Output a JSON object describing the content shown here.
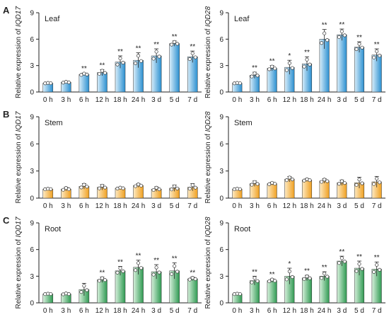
{
  "colors": {
    "blue_light": "#d9eefa",
    "blue_dark": "#2a8fd0",
    "orange_light": "#fdeac4",
    "orange_dark": "#f0a020",
    "green_light": "#d7f0dc",
    "green_dark": "#2f9a52"
  },
  "chart_data": [
    {
      "type": "bar",
      "panel_letter": "A",
      "tissue": "Leaf",
      "ylabel_prefix": "Relative expression of ",
      "gene": "IQD17",
      "categories": [
        "0 h",
        "3 h",
        "6 h",
        "12 h",
        "18 h",
        "24 h",
        "3 d",
        "5 d",
        "7 d"
      ],
      "values": [
        1.0,
        1.1,
        2.0,
        2.2,
        3.4,
        3.6,
        4.1,
        5.5,
        4.0
      ],
      "errors": [
        0.05,
        0.1,
        0.15,
        0.35,
        0.7,
        0.85,
        0.8,
        0.3,
        0.65
      ],
      "significance": [
        "",
        "",
        "**",
        "**",
        "**",
        "**",
        "**",
        "**",
        "**"
      ],
      "ylim": [
        0,
        9
      ],
      "yticks": [
        0,
        3,
        6,
        9
      ],
      "color": "blue"
    },
    {
      "type": "bar",
      "panel_letter": "",
      "tissue": "Leaf",
      "ylabel_prefix": "Relative expression of ",
      "gene": "IQD28",
      "categories": [
        "0 h",
        "3 h",
        "6 h",
        "12 h",
        "18 h",
        "24 h",
        "3 d",
        "5 d",
        "7 d"
      ],
      "values": [
        1.0,
        1.9,
        2.7,
        2.8,
        3.2,
        6.0,
        6.5,
        5.1,
        4.2
      ],
      "errors": [
        0.05,
        0.35,
        0.3,
        0.8,
        0.8,
        1.1,
        0.65,
        0.6,
        0.7
      ],
      "significance": [
        "",
        "**",
        "**",
        "*",
        "**",
        "**",
        "**",
        "**",
        "**"
      ],
      "ylim": [
        0,
        9
      ],
      "yticks": [
        0,
        3,
        6,
        9
      ],
      "color": "blue"
    },
    {
      "type": "bar",
      "panel_letter": "B",
      "tissue": "Stem",
      "ylabel_prefix": "Relative expression of ",
      "gene": "IQD17",
      "categories": [
        "0 h",
        "3 h",
        "6 h",
        "12 h",
        "18 h",
        "24 h",
        "3 d",
        "5 d",
        "7 d"
      ],
      "values": [
        1.0,
        1.0,
        1.3,
        1.2,
        1.1,
        1.4,
        1.0,
        1.1,
        1.2
      ],
      "errors": [
        0.05,
        0.2,
        0.3,
        0.3,
        0.1,
        0.2,
        0.25,
        0.35,
        0.4
      ],
      "significance": [
        "",
        "",
        "",
        "",
        "",
        "",
        "",
        "",
        ""
      ],
      "ylim": [
        0,
        9
      ],
      "yticks": [
        0,
        3,
        6,
        9
      ],
      "color": "orange"
    },
    {
      "type": "bar",
      "panel_letter": "",
      "tissue": "Stem",
      "ylabel_prefix": "Relative expression of ",
      "gene": "IQD28",
      "categories": [
        "0 h",
        "3 h",
        "6 h",
        "12 h",
        "18 h",
        "24 h",
        "3 d",
        "5 d",
        "7 d"
      ],
      "values": [
        1.0,
        1.6,
        1.6,
        2.1,
        2.0,
        1.9,
        1.7,
        1.7,
        1.8
      ],
      "errors": [
        0.05,
        0.3,
        0.15,
        0.3,
        0.15,
        0.25,
        0.3,
        0.6,
        0.6
      ],
      "significance": [
        "",
        "",
        "",
        "",
        "",
        "",
        "",
        "",
        ""
      ],
      "ylim": [
        0,
        9
      ],
      "yticks": [
        0,
        3,
        6,
        9
      ],
      "color": "orange"
    },
    {
      "type": "bar",
      "panel_letter": "C",
      "tissue": "Root",
      "ylabel_prefix": "Relative expression of ",
      "gene": "IQD17",
      "categories": [
        "0 h",
        "3 h",
        "6 h",
        "12 h",
        "18 h",
        "24 h",
        "3 d",
        "5 d",
        "7 d"
      ],
      "values": [
        1.0,
        1.0,
        1.5,
        2.6,
        3.6,
        4.0,
        3.5,
        3.6,
        2.7
      ],
      "errors": [
        0.05,
        0.1,
        0.7,
        0.3,
        0.5,
        0.8,
        0.8,
        0.9,
        0.2
      ],
      "significance": [
        "",
        "",
        "",
        "**",
        "**",
        "**",
        "**",
        "**",
        "**"
      ],
      "ylim": [
        0,
        9
      ],
      "yticks": [
        0,
        3,
        6,
        9
      ],
      "color": "green"
    },
    {
      "type": "bar",
      "panel_letter": "",
      "tissue": "Root",
      "ylabel_prefix": "Relative expression of ",
      "gene": "IQD28",
      "categories": [
        "0 h",
        "3 h",
        "6 h",
        "12 h",
        "18 h",
        "24 h",
        "3 d",
        "5 d",
        "7 d"
      ],
      "values": [
        1.0,
        2.5,
        2.5,
        3.0,
        2.8,
        3.0,
        4.7,
        3.9,
        3.8
      ],
      "errors": [
        0.05,
        0.5,
        0.2,
        0.9,
        0.3,
        0.5,
        0.55,
        0.8,
        0.8
      ],
      "significance": [
        "",
        "**",
        "**",
        "*",
        "**",
        "**",
        "**",
        "**",
        "**"
      ],
      "ylim": [
        0,
        9
      ],
      "yticks": [
        0,
        3,
        6,
        9
      ],
      "color": "green"
    }
  ]
}
